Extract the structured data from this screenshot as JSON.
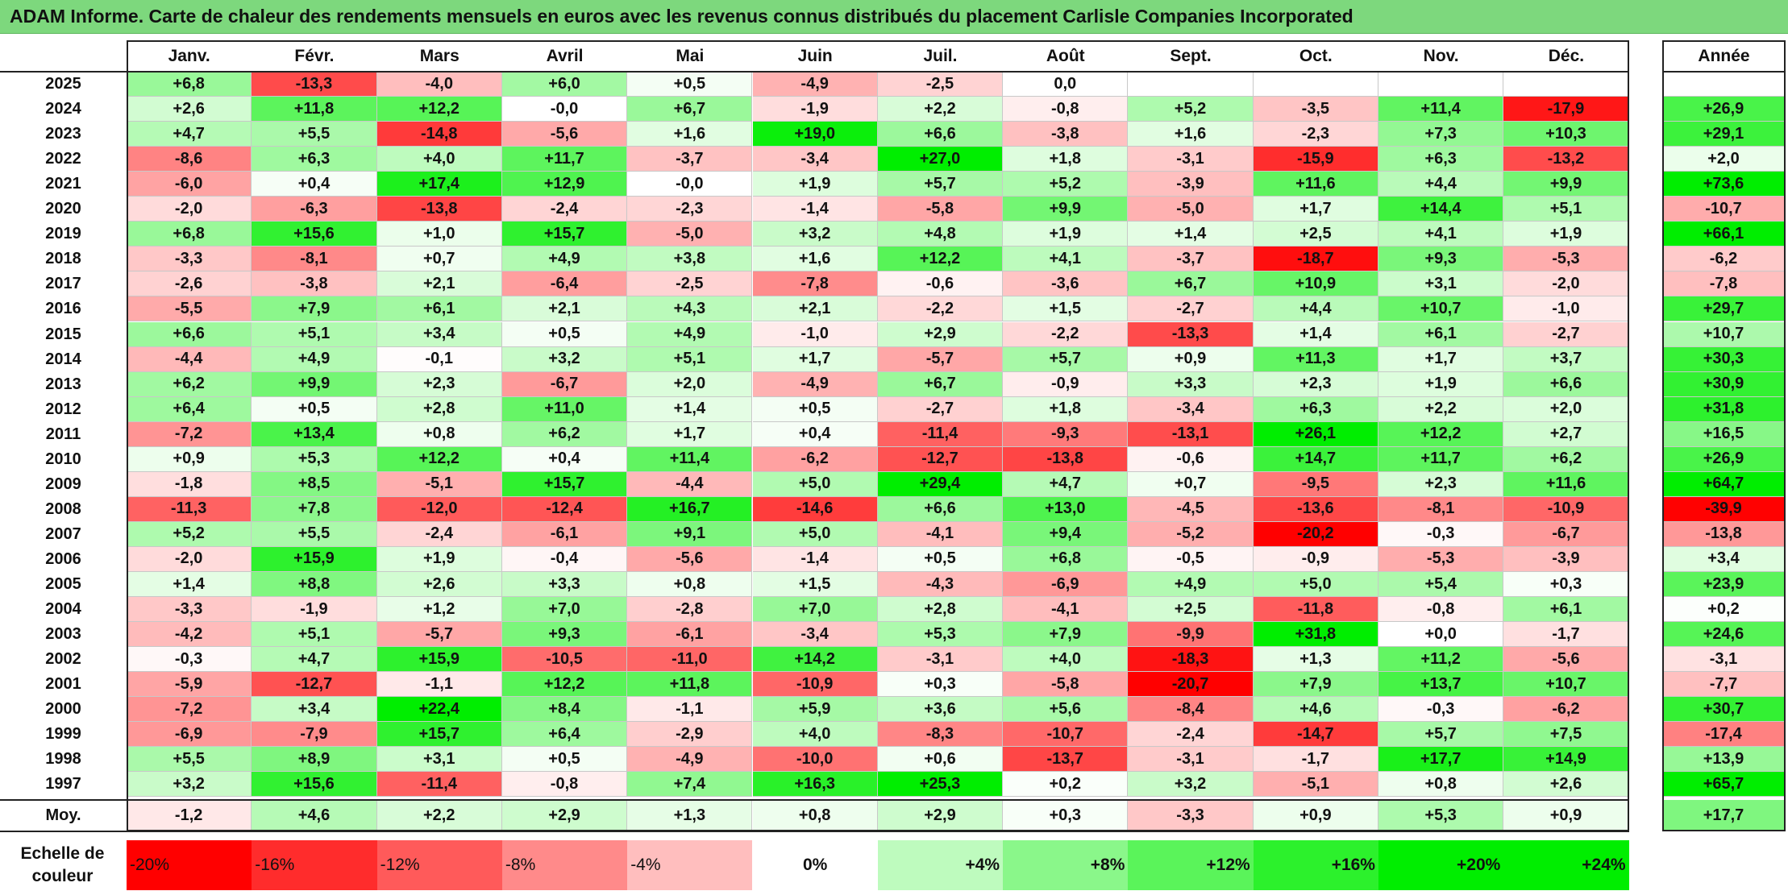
{
  "title": "ADAM Informe. Carte de chaleur des rendements mensuels en euros avec les revenus connus distribués du placement Carlisle Companies Incorporated",
  "chart_data": {
    "type": "heatmap",
    "months": [
      "Janv.",
      "Févr.",
      "Mars",
      "Avril",
      "Mai",
      "Juin",
      "Juil.",
      "Août",
      "Sept.",
      "Oct.",
      "Nov.",
      "Déc."
    ],
    "year_column_label": "Année",
    "rows": [
      {
        "year": "2025",
        "values": [
          "+6,8",
          "-13,3",
          "-4,0",
          "+6,0",
          "+0,5",
          "-4,9",
          "-2,5",
          "0,0",
          "",
          "",
          "",
          ""
        ],
        "annual": ""
      },
      {
        "year": "2024",
        "values": [
          "+2,6",
          "+11,8",
          "+12,2",
          "-0,0",
          "+6,7",
          "-1,9",
          "+2,2",
          "-0,8",
          "+5,2",
          "-3,5",
          "+11,4",
          "-17,9"
        ],
        "annual": "+26,9"
      },
      {
        "year": "2023",
        "values": [
          "+4,7",
          "+5,5",
          "-14,8",
          "-5,6",
          "+1,6",
          "+19,0",
          "+6,6",
          "-3,8",
          "+1,6",
          "-2,3",
          "+7,3",
          "+10,3"
        ],
        "annual": "+29,1"
      },
      {
        "year": "2022",
        "values": [
          "-8,6",
          "+6,3",
          "+4,0",
          "+11,7",
          "-3,7",
          "-3,4",
          "+27,0",
          "+1,8",
          "-3,1",
          "-15,9",
          "+6,3",
          "-13,2"
        ],
        "annual": "+2,0"
      },
      {
        "year": "2021",
        "values": [
          "-6,0",
          "+0,4",
          "+17,4",
          "+12,9",
          "-0,0",
          "+1,9",
          "+5,7",
          "+5,2",
          "-3,9",
          "+11,6",
          "+4,4",
          "+9,9"
        ],
        "annual": "+73,6"
      },
      {
        "year": "2020",
        "values": [
          "-2,0",
          "-6,3",
          "-13,8",
          "-2,4",
          "-2,3",
          "-1,4",
          "-5,8",
          "+9,9",
          "-5,0",
          "+1,7",
          "+14,4",
          "+5,1"
        ],
        "annual": "-10,7"
      },
      {
        "year": "2019",
        "values": [
          "+6,8",
          "+15,6",
          "+1,0",
          "+15,7",
          "-5,0",
          "+3,2",
          "+4,8",
          "+1,9",
          "+1,4",
          "+2,5",
          "+4,1",
          "+1,9"
        ],
        "annual": "+66,1"
      },
      {
        "year": "2018",
        "values": [
          "-3,3",
          "-8,1",
          "+0,7",
          "+4,9",
          "+3,8",
          "+1,6",
          "+12,2",
          "+4,1",
          "-3,7",
          "-18,7",
          "+9,3",
          "-5,3"
        ],
        "annual": "-6,2"
      },
      {
        "year": "2017",
        "values": [
          "-2,6",
          "-3,8",
          "+2,1",
          "-6,4",
          "-2,5",
          "-7,8",
          "-0,6",
          "-3,6",
          "+6,7",
          "+10,9",
          "+3,1",
          "-2,0"
        ],
        "annual": "-7,8"
      },
      {
        "year": "2016",
        "values": [
          "-5,5",
          "+7,9",
          "+6,1",
          "+2,1",
          "+4,3",
          "+2,1",
          "-2,2",
          "+1,5",
          "-2,7",
          "+4,4",
          "+10,7",
          "-1,0"
        ],
        "annual": "+29,7"
      },
      {
        "year": "2015",
        "values": [
          "+6,6",
          "+5,1",
          "+3,4",
          "+0,5",
          "+4,9",
          "-1,0",
          "+2,9",
          "-2,2",
          "-13,3",
          "+1,4",
          "+6,1",
          "-2,7"
        ],
        "annual": "+10,7"
      },
      {
        "year": "2014",
        "values": [
          "-4,4",
          "+4,9",
          "-0,1",
          "+3,2",
          "+5,1",
          "+1,7",
          "-5,7",
          "+5,7",
          "+0,9",
          "+11,3",
          "+1,7",
          "+3,7"
        ],
        "annual": "+30,3"
      },
      {
        "year": "2013",
        "values": [
          "+6,2",
          "+9,9",
          "+2,3",
          "-6,7",
          "+2,0",
          "-4,9",
          "+6,7",
          "-0,9",
          "+3,3",
          "+2,3",
          "+1,9",
          "+6,6"
        ],
        "annual": "+30,9"
      },
      {
        "year": "2012",
        "values": [
          "+6,4",
          "+0,5",
          "+2,8",
          "+11,0",
          "+1,4",
          "+0,5",
          "-2,7",
          "+1,8",
          "-3,4",
          "+6,3",
          "+2,2",
          "+2,0"
        ],
        "annual": "+31,8"
      },
      {
        "year": "2011",
        "values": [
          "-7,2",
          "+13,4",
          "+0,8",
          "+6,2",
          "+1,7",
          "+0,4",
          "-11,4",
          "-9,3",
          "-13,1",
          "+26,1",
          "+12,2",
          "+2,7"
        ],
        "annual": "+16,5"
      },
      {
        "year": "2010",
        "values": [
          "+0,9",
          "+5,3",
          "+12,2",
          "+0,4",
          "+11,4",
          "-6,2",
          "-12,7",
          "-13,8",
          "-0,6",
          "+14,7",
          "+11,7",
          "+6,2"
        ],
        "annual": "+26,9"
      },
      {
        "year": "2009",
        "values": [
          "-1,8",
          "+8,5",
          "-5,1",
          "+15,7",
          "-4,4",
          "+5,0",
          "+29,4",
          "+4,7",
          "+0,7",
          "-9,5",
          "+2,3",
          "+11,6"
        ],
        "annual": "+64,7"
      },
      {
        "year": "2008",
        "values": [
          "-11,3",
          "+7,8",
          "-12,0",
          "-12,4",
          "+16,7",
          "-14,6",
          "+6,6",
          "+13,0",
          "-4,5",
          "-13,6",
          "-8,1",
          "-10,9"
        ],
        "annual": "-39,9"
      },
      {
        "year": "2007",
        "values": [
          "+5,2",
          "+5,5",
          "-2,4",
          "-6,1",
          "+9,1",
          "+5,0",
          "-4,1",
          "+9,4",
          "-5,2",
          "-20,2",
          "-0,3",
          "-6,7"
        ],
        "annual": "-13,8"
      },
      {
        "year": "2006",
        "values": [
          "-2,0",
          "+15,9",
          "+1,9",
          "-0,4",
          "-5,6",
          "-1,4",
          "+0,5",
          "+6,8",
          "-0,5",
          "-0,9",
          "-5,3",
          "-3,9"
        ],
        "annual": "+3,4"
      },
      {
        "year": "2005",
        "values": [
          "+1,4",
          "+8,8",
          "+2,6",
          "+3,3",
          "+0,8",
          "+1,5",
          "-4,3",
          "-6,9",
          "+4,9",
          "+5,0",
          "+5,4",
          "+0,3"
        ],
        "annual": "+23,9"
      },
      {
        "year": "2004",
        "values": [
          "-3,3",
          "-1,9",
          "+1,2",
          "+7,0",
          "-2,8",
          "+7,0",
          "+2,8",
          "-4,1",
          "+2,5",
          "-11,8",
          "-0,8",
          "+6,1"
        ],
        "annual": "+0,2"
      },
      {
        "year": "2003",
        "values": [
          "-4,2",
          "+5,1",
          "-5,7",
          "+9,3",
          "-6,1",
          "-3,4",
          "+5,3",
          "+7,9",
          "-9,9",
          "+31,8",
          "+0,0",
          "-1,7"
        ],
        "annual": "+24,6"
      },
      {
        "year": "2002",
        "values": [
          "-0,3",
          "+4,7",
          "+15,9",
          "-10,5",
          "-11,0",
          "+14,2",
          "-3,1",
          "+4,0",
          "-18,3",
          "+1,3",
          "+11,2",
          "-5,6"
        ],
        "annual": "-3,1"
      },
      {
        "year": "2001",
        "values": [
          "-5,9",
          "-12,7",
          "-1,1",
          "+12,2",
          "+11,8",
          "-10,9",
          "+0,3",
          "-5,8",
          "-20,7",
          "+7,9",
          "+13,7",
          "+10,7"
        ],
        "annual": "-7,7"
      },
      {
        "year": "2000",
        "values": [
          "-7,2",
          "+3,4",
          "+22,4",
          "+8,4",
          "-1,1",
          "+5,9",
          "+3,6",
          "+5,6",
          "-8,4",
          "+4,6",
          "-0,3",
          "-6,2"
        ],
        "annual": "+30,7"
      },
      {
        "year": "1999",
        "values": [
          "-6,9",
          "-7,9",
          "+15,7",
          "+6,4",
          "-2,9",
          "+4,0",
          "-8,3",
          "-10,7",
          "-2,4",
          "-14,7",
          "+5,7",
          "+7,5"
        ],
        "annual": "-17,4"
      },
      {
        "year": "1998",
        "values": [
          "+5,5",
          "+8,9",
          "+3,1",
          "+0,5",
          "-4,9",
          "-10,0",
          "+0,6",
          "-13,7",
          "-3,1",
          "-1,7",
          "+17,7",
          "+14,9"
        ],
        "annual": "+13,9"
      },
      {
        "year": "1997",
        "values": [
          "+3,2",
          "+15,6",
          "-11,4",
          "-0,8",
          "+7,4",
          "+16,3",
          "+25,3",
          "+0,2",
          "+3,2",
          "-5,1",
          "+0,8",
          "+2,6"
        ],
        "annual": "+65,7"
      }
    ],
    "average": {
      "label": "Moy.",
      "values": [
        "-1,2",
        "+4,6",
        "+2,2",
        "+2,9",
        "+1,3",
        "+0,8",
        "+2,9",
        "+0,3",
        "-3,3",
        "+0,9",
        "+5,3",
        "+0,9"
      ],
      "annual": "+17,7"
    },
    "color_scale": {
      "label_line1": "Echelle de",
      "label_line2": "couleur",
      "stops": [
        "-20%",
        "-16%",
        "-12%",
        "-8%",
        "-4%",
        "0%",
        "+4%",
        "+8%",
        "+12%",
        "+16%",
        "+20%",
        "+24%"
      ],
      "negative_color": "#ff0000",
      "neutral_color": "#ffffff",
      "positive_color": "#00ee00"
    }
  }
}
